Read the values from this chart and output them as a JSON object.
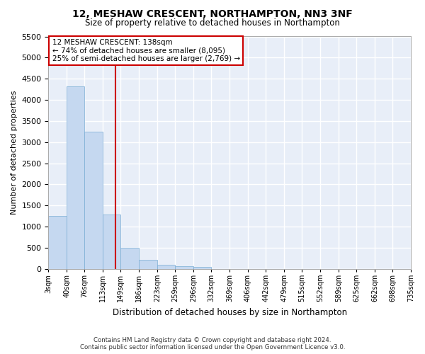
{
  "title": "12, MESHAW CRESCENT, NORTHAMPTON, NN3 3NF",
  "subtitle": "Size of property relative to detached houses in Northampton",
  "xlabel": "Distribution of detached houses by size in Northampton",
  "ylabel": "Number of detached properties",
  "bar_color": "#c5d8f0",
  "bar_edge_color": "#7aadd4",
  "background_color": "#e8eef8",
  "grid_color": "#ffffff",
  "fig_background": "#ffffff",
  "bin_labels": [
    "3sqm",
    "40sqm",
    "76sqm",
    "113sqm",
    "149sqm",
    "186sqm",
    "223sqm",
    "259sqm",
    "296sqm",
    "332sqm",
    "369sqm",
    "406sqm",
    "442sqm",
    "479sqm",
    "515sqm",
    "552sqm",
    "589sqm",
    "625sqm",
    "662sqm",
    "698sqm",
    "735sqm"
  ],
  "bar_values": [
    1250,
    4320,
    3250,
    1280,
    490,
    210,
    90,
    65,
    45,
    0,
    0,
    0,
    0,
    0,
    0,
    0,
    0,
    0,
    0,
    0
  ],
  "ylim": [
    0,
    5500
  ],
  "yticks": [
    0,
    500,
    1000,
    1500,
    2000,
    2500,
    3000,
    3500,
    4000,
    4500,
    5000,
    5500
  ],
  "property_line_x": 138,
  "property_name": "12 MESHAW CRESCENT: 138sqm",
  "annotation_line1": "← 74% of detached houses are smaller (8,095)",
  "annotation_line2": "25% of semi-detached houses are larger (2,769) →",
  "vline_color": "#cc0000",
  "annotation_box_edge": "#cc0000",
  "footer_line1": "Contains HM Land Registry data © Crown copyright and database right 2024.",
  "footer_line2": "Contains public sector information licensed under the Open Government Licence v3.0.",
  "bin_edges": [
    3,
    40,
    76,
    113,
    149,
    186,
    223,
    259,
    296,
    332,
    369,
    406,
    442,
    479,
    515,
    552,
    589,
    625,
    662,
    698,
    735
  ]
}
